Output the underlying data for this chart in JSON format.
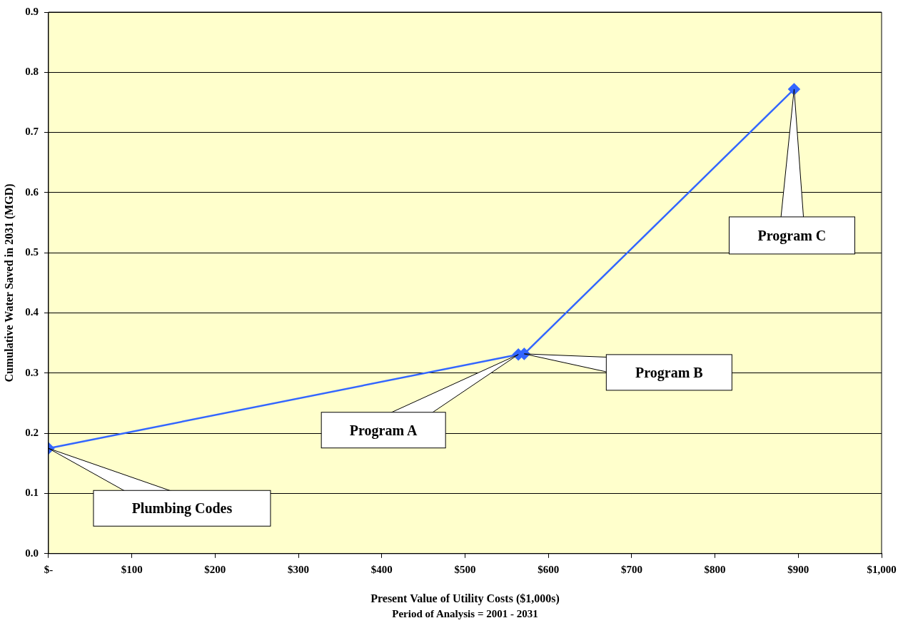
{
  "chart_data": {
    "type": "line",
    "xlabel": "Present Value of Utility Costs ($1,000s)",
    "ylabel": "Cumulative Water Saved in 2031 (MGD)",
    "x": [
      0,
      564,
      571,
      895
    ],
    "series": [
      {
        "color": "#3366ff",
        "values": [
          0.175,
          0.331,
          0.332,
          0.772
        ]
      }
    ],
    "xlim": [
      0,
      1000
    ],
    "xticks": [
      {
        "value": 0,
        "label": "$-"
      },
      {
        "value": 100,
        "label": "$100"
      },
      {
        "value": 200,
        "label": "$200"
      },
      {
        "value": 300,
        "label": "$300"
      },
      {
        "value": 400,
        "label": "$400"
      },
      {
        "value": 500,
        "label": "$500"
      },
      {
        "value": 600,
        "label": "$600"
      },
      {
        "value": 700,
        "label": "$700"
      },
      {
        "value": 800,
        "label": "$800"
      },
      {
        "value": 900,
        "label": "$900"
      },
      {
        "value": 1000,
        "label": "$1,000"
      }
    ],
    "ylim": [
      0,
      0.9
    ],
    "yticks": [
      {
        "value": 0,
        "label": "0.0"
      },
      {
        "value": 0.1,
        "label": "0.1"
      },
      {
        "value": 0.2,
        "label": "0.2"
      },
      {
        "value": 0.3,
        "label": "0.3"
      },
      {
        "value": 0.4,
        "label": "0.4"
      },
      {
        "value": 0.5,
        "label": "0.5"
      },
      {
        "value": 0.6,
        "label": "0.6"
      },
      {
        "value": 0.7,
        "label": "0.7"
      },
      {
        "value": 0.8,
        "label": "0.8"
      },
      {
        "value": 0.9,
        "label": "0.9"
      }
    ],
    "grid": "y",
    "legend": false,
    "marker": "diamond",
    "line_style": "solid",
    "annotations": [
      "Plumbing Codes",
      "Program A",
      "Program B",
      "Program C",
      "Period of Analysis = 2001 - 2031"
    ]
  }
}
